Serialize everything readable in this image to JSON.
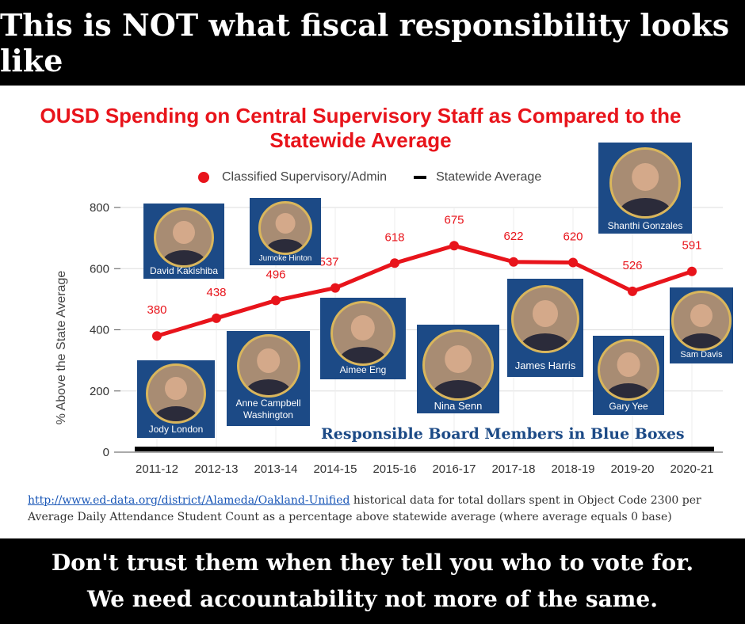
{
  "headline": "This is NOT what fiscal responsibility looks like",
  "chart_title": "OUSD Spending on Central Supervisory Staff as Compared to the Statewide Average",
  "legend": {
    "series1": "Classified Supervisory/Admin",
    "series2": "Statewide Average"
  },
  "ylabel": "% Above the State Average",
  "responsible_label": "Responsible Board Members in Blue Boxes",
  "source": {
    "link": "http://www.ed-data.org/district/Alameda/Oakland-Unified",
    "text": " historical data for total dollars spent in Object Code 2300 per Average Daily Attendance Student Count as a percentage above statewide average (where average equals 0 base)"
  },
  "bottom": {
    "line1": "Don't trust them when they tell you who to vote for.",
    "line2": "We need accountability not more of the same."
  },
  "board_members": [
    "David Kakishiba",
    "Jumoke Hinton",
    "Jody London",
    "Anne Campbell Washington",
    "Aimee Eng",
    "Nina Senn",
    "James Harris",
    "Gary Yee",
    "Shanthi Gonzales",
    "Sam Davis"
  ],
  "colors": {
    "series": "#e8141b",
    "card": "#1c4a86",
    "average": "#000000"
  },
  "chart_data": {
    "type": "line",
    "categories": [
      "2011-12",
      "2012-13",
      "2013-14",
      "2014-15",
      "2015-16",
      "2016-17",
      "2017-18",
      "2018-19",
      "2019-20",
      "2020-21"
    ],
    "series": [
      {
        "name": "Classified Supervisory/Admin",
        "values": [
          380,
          438,
          496,
          537,
          618,
          675,
          622,
          620,
          526,
          591
        ]
      },
      {
        "name": "Statewide Average",
        "values": [
          0,
          0,
          0,
          0,
          0,
          0,
          0,
          0,
          0,
          0
        ]
      }
    ],
    "ylim": [
      0,
      800
    ],
    "yticks": [
      0,
      200,
      400,
      600,
      800
    ],
    "grid": true,
    "legend_position": "top"
  }
}
